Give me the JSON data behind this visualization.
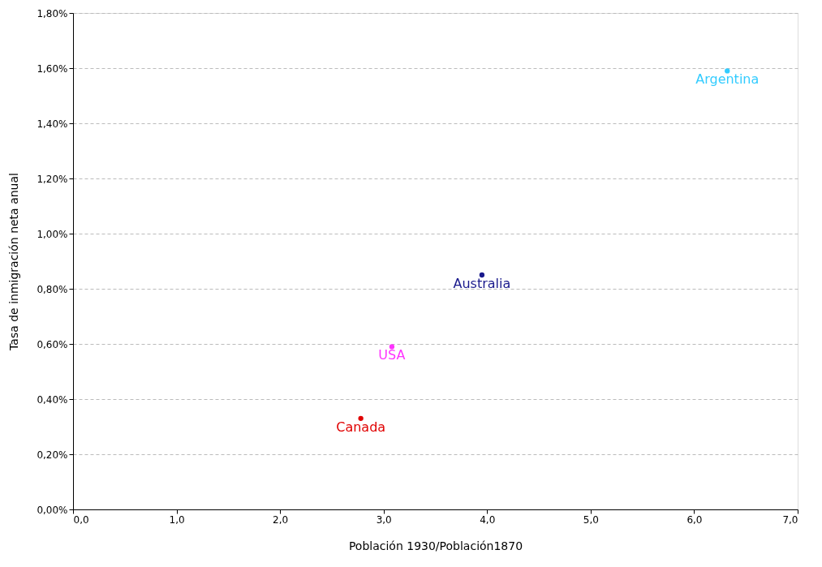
{
  "chart_data": {
    "type": "scatter",
    "xlabel": "Población 1930/Población1870",
    "ylabel": "Tasa de inmigración neta anual",
    "series": [
      {
        "name": "Argentina",
        "color": "#33ccff",
        "x": [
          6.32
        ],
        "values": [
          1.59
        ]
      },
      {
        "name": "Australia",
        "color": "#1a1a8c",
        "x": [
          3.95
        ],
        "values": [
          0.85
        ]
      },
      {
        "name": "USA",
        "color": "#ff33ff",
        "x": [
          3.08
        ],
        "values": [
          0.59
        ]
      },
      {
        "name": "Canada",
        "color": "#e00000",
        "x": [
          2.78
        ],
        "values": [
          0.33
        ]
      }
    ],
    "xlim": [
      0,
      7
    ],
    "ylim": [
      0,
      1.8
    ],
    "xticks": [
      {
        "value": 0,
        "label": "0,0"
      },
      {
        "value": 1,
        "label": "1,0"
      },
      {
        "value": 2,
        "label": "2,0"
      },
      {
        "value": 3,
        "label": "3,0"
      },
      {
        "value": 4,
        "label": "4,0"
      },
      {
        "value": 5,
        "label": "5,0"
      },
      {
        "value": 6,
        "label": "6,0"
      },
      {
        "value": 7,
        "label": "7,0"
      }
    ],
    "yticks": [
      {
        "value": 0,
        "label": "0,00%"
      },
      {
        "value": 0.2,
        "label": "0,20%"
      },
      {
        "value": 0.4,
        "label": "0,40%"
      },
      {
        "value": 0.6,
        "label": "0,60%"
      },
      {
        "value": 0.8,
        "label": "0,80%"
      },
      {
        "value": 1.0,
        "label": "1,00%"
      },
      {
        "value": 1.2,
        "label": "1,20%"
      },
      {
        "value": 1.4,
        "label": "1,40%"
      },
      {
        "value": 1.6,
        "label": "1,60%"
      },
      {
        "value": 1.8,
        "label": "1,80%"
      }
    ],
    "grid": "y",
    "marker": "circle"
  }
}
